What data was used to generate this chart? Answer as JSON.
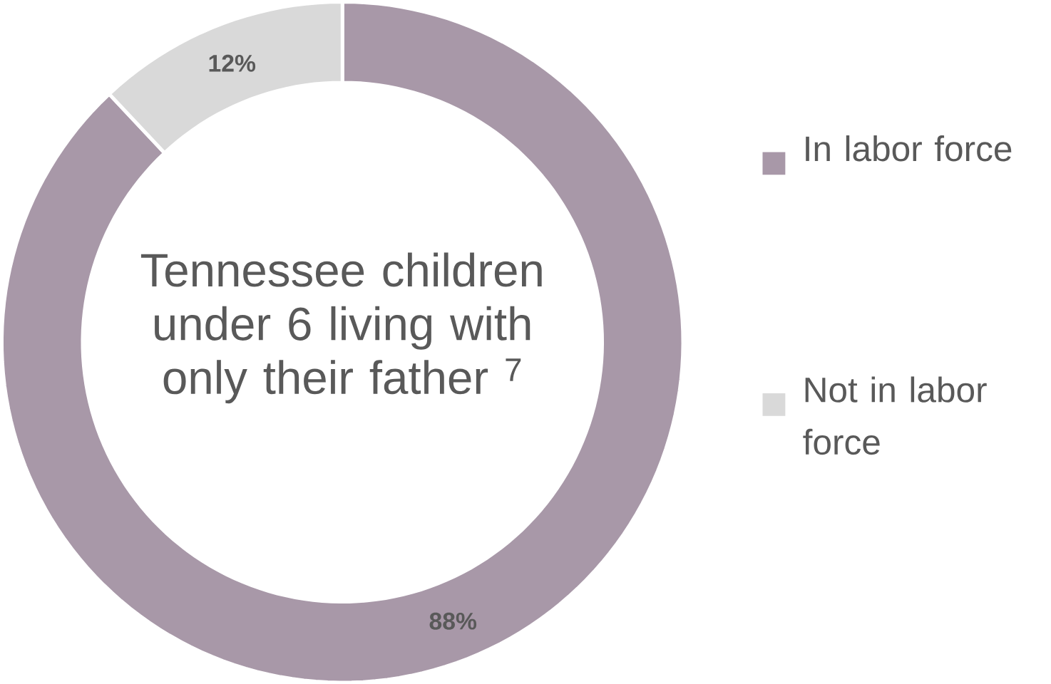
{
  "chart_data": {
    "type": "donut",
    "title": "Tennessee children under 6 living with only their father $^{7}$",
    "categories": [
      "In labor force",
      "Not in labor force"
    ],
    "values": [
      88,
      12
    ],
    "colors": [
      "#a898a8",
      "#d9d9d9"
    ],
    "value_labels": [
      "88%",
      "12%"
    ],
    "legend": "right"
  }
}
